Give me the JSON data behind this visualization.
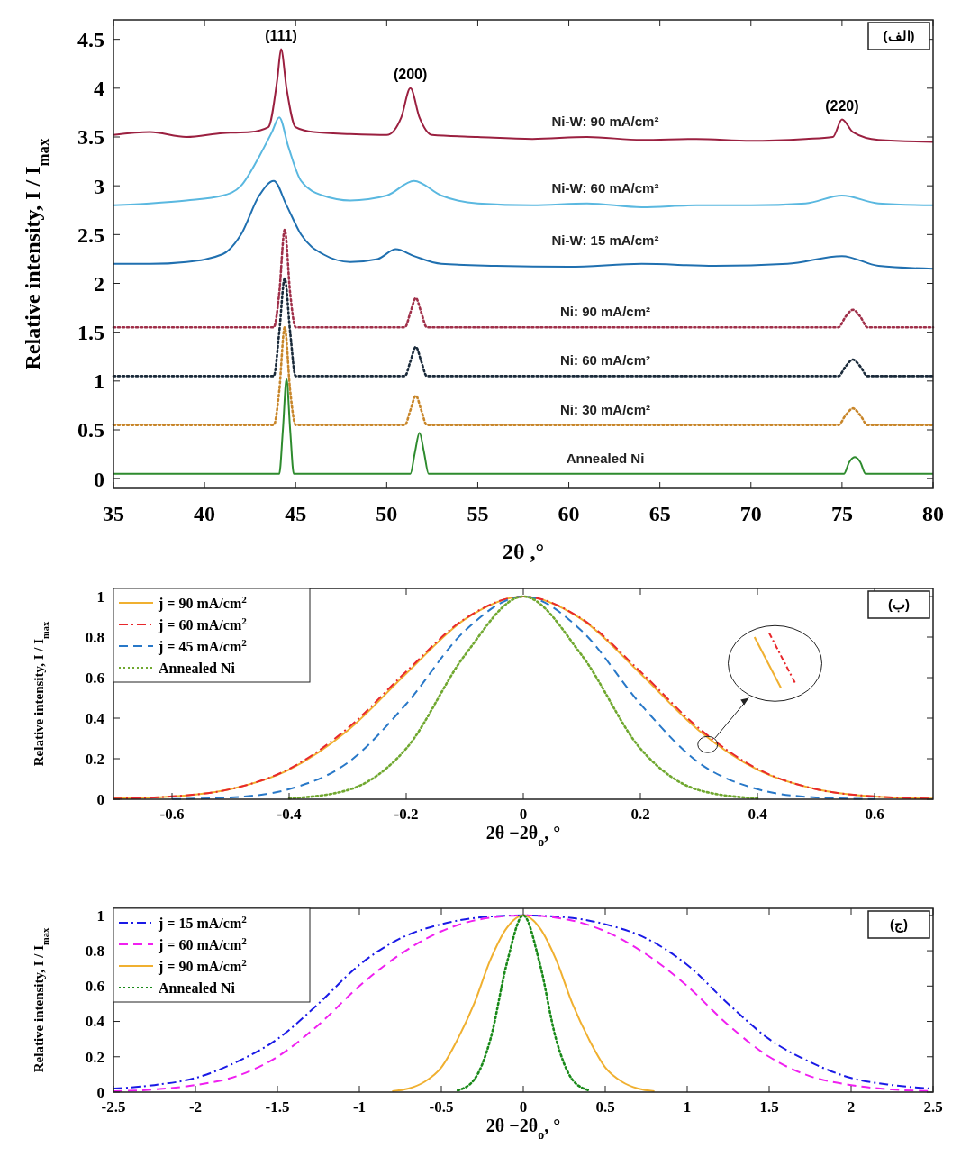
{
  "chart_data": [
    {
      "type": "line",
      "xlabel": "2θ ,°",
      "ylabel": "Relative intensity, I / I$_{max}$",
      "xlim": [
        35,
        80
      ],
      "ylim": [
        -0.1,
        4.7
      ],
      "xticks": [
        35,
        40,
        45,
        50,
        55,
        60,
        65,
        70,
        75,
        80
      ],
      "yticks": [
        0,
        0.5,
        1,
        1.5,
        2,
        2.5,
        3,
        3.5,
        4,
        4.5
      ],
      "grid": false,
      "legend": false,
      "marker": "none",
      "annotations": [
        "(الف)",
        {
          "text": "(111)",
          "x": 44.2,
          "y": 4.4
        },
        {
          "text": "(200)",
          "x": 51.3,
          "y": 4.0
        },
        {
          "text": "(220)",
          "x": 75,
          "y": 3.68
        }
      ],
      "series": [
        {
          "name": "Ni-W: 90  mA/cm²",
          "color": "#9b2040",
          "line_style": "solid",
          "x": [
            35,
            37,
            39,
            41,
            42.5,
            43.5,
            44,
            44.2,
            44.5,
            45,
            46,
            48,
            50,
            50.8,
            51.3,
            51.8,
            52.5,
            55,
            58,
            61,
            64,
            67,
            70,
            73,
            74.5,
            75,
            75.6,
            77,
            80
          ],
          "values": [
            3.52,
            3.55,
            3.5,
            3.54,
            3.55,
            3.6,
            4.1,
            4.4,
            4.0,
            3.6,
            3.55,
            3.53,
            3.52,
            3.7,
            4.0,
            3.7,
            3.52,
            3.5,
            3.48,
            3.5,
            3.47,
            3.48,
            3.46,
            3.48,
            3.5,
            3.68,
            3.55,
            3.47,
            3.45
          ]
        },
        {
          "name": "Ni-W: 60  mA/cm²",
          "color": "#5ab8e0",
          "line_style": "solid",
          "x": [
            35,
            37,
            39,
            41,
            42,
            43,
            43.7,
            44.1,
            44.6,
            45.3,
            46.5,
            48,
            50,
            51.5,
            53,
            55,
            58,
            61,
            64,
            67,
            70,
            73,
            75,
            77,
            80
          ],
          "values": [
            2.8,
            2.82,
            2.85,
            2.9,
            3.0,
            3.3,
            3.55,
            3.7,
            3.4,
            3.05,
            2.9,
            2.85,
            2.9,
            3.05,
            2.9,
            2.82,
            2.8,
            2.82,
            2.78,
            2.8,
            2.8,
            2.82,
            2.9,
            2.82,
            2.8
          ]
        },
        {
          "name": "Ni-W: 15  mA/cm²",
          "color": "#2070b0",
          "line_style": "solid",
          "x": [
            35,
            37,
            39,
            41,
            42,
            43,
            43.8,
            44.5,
            45.3,
            46.5,
            48,
            49.5,
            50.5,
            51.5,
            53,
            56,
            60,
            64,
            68,
            72,
            75,
            77,
            80
          ],
          "values": [
            2.2,
            2.2,
            2.22,
            2.3,
            2.5,
            2.9,
            3.05,
            2.8,
            2.5,
            2.3,
            2.22,
            2.25,
            2.35,
            2.28,
            2.2,
            2.18,
            2.17,
            2.2,
            2.18,
            2.2,
            2.28,
            2.18,
            2.15
          ]
        },
        {
          "name": "Ni: 90  mA/cm²",
          "color": "#a0304a",
          "line_style": "dotted",
          "x": [
            35,
            43.8,
            44.1,
            44.4,
            44.7,
            45,
            51,
            51.3,
            51.6,
            51.9,
            52.2,
            74.8,
            75.2,
            75.6,
            76,
            76.4,
            80
          ],
          "values": [
            1.55,
            1.55,
            1.9,
            2.55,
            1.9,
            1.55,
            1.55,
            1.7,
            1.85,
            1.7,
            1.55,
            1.55,
            1.66,
            1.73,
            1.66,
            1.55,
            1.55
          ]
        },
        {
          "name": "Ni: 60  mA/cm²",
          "color": "#1a2a3a",
          "line_style": "dotted",
          "x": [
            35,
            43.8,
            44.1,
            44.4,
            44.7,
            45,
            51,
            51.3,
            51.6,
            51.9,
            52.2,
            74.8,
            75.2,
            75.6,
            76,
            76.4,
            80
          ],
          "values": [
            1.05,
            1.05,
            1.5,
            2.05,
            1.5,
            1.05,
            1.05,
            1.2,
            1.35,
            1.2,
            1.05,
            1.05,
            1.15,
            1.22,
            1.15,
            1.05,
            1.05
          ]
        },
        {
          "name": "Ni: 30  mA/cm²",
          "color": "#c8862a",
          "line_style": "dotted",
          "x": [
            35,
            43.8,
            44.1,
            44.4,
            44.7,
            45,
            51,
            51.3,
            51.6,
            51.9,
            52.2,
            74.8,
            75.2,
            75.6,
            76,
            76.4,
            80
          ],
          "values": [
            0.55,
            0.55,
            0.9,
            1.55,
            0.9,
            0.55,
            0.55,
            0.7,
            0.85,
            0.7,
            0.55,
            0.55,
            0.65,
            0.72,
            0.65,
            0.55,
            0.55
          ]
        },
        {
          "name": "Annealed Ni",
          "color": "#2e8b2e",
          "line_style": "solid",
          "x": [
            35,
            44.1,
            44.3,
            44.5,
            44.7,
            44.9,
            51.3,
            51.55,
            51.8,
            52.05,
            52.3,
            75.1,
            75.4,
            75.7,
            76,
            76.3,
            80
          ],
          "values": [
            0.05,
            0.05,
            0.5,
            1.02,
            0.5,
            0.05,
            0.05,
            0.27,
            0.47,
            0.27,
            0.05,
            0.05,
            0.17,
            0.22,
            0.17,
            0.05,
            0.05
          ]
        }
      ]
    },
    {
      "type": "line",
      "xlabel": "2θ −2θ$_{o}$, °",
      "ylabel": "Relative intensity, I / I$_{max}$",
      "xlim": [
        -0.7,
        0.7
      ],
      "ylim": [
        0,
        1.04
      ],
      "xticks": [
        -0.6,
        -0.4,
        -0.2,
        0,
        0.2,
        0.4,
        0.6
      ],
      "yticks": [
        0,
        0.2,
        0.4,
        0.6,
        0.8,
        1
      ],
      "grid": false,
      "legend": "top left",
      "marker": "none",
      "annotations": [
        "(ب)"
      ],
      "x": [
        -0.7,
        -0.6,
        -0.5,
        -0.4,
        -0.3,
        -0.2,
        -0.1,
        0,
        0.1,
        0.2,
        0.3,
        0.4,
        0.5,
        0.6,
        0.7
      ],
      "series": [
        {
          "name": "j = 90 mA/cm$^{2}$",
          "color": "#f0b030",
          "line_style": "solid",
          "values": [
            0.003,
            0.013,
            0.05,
            0.146,
            0.339,
            0.62,
            0.887,
            1,
            0.887,
            0.62,
            0.339,
            0.146,
            0.05,
            0.013,
            0.003
          ]
        },
        {
          "name": "j = 60 mA/cm$^{2}$",
          "color": "#e8282c",
          "line_style": "dashdot",
          "values": [
            0.003,
            0.014,
            0.05,
            0.15,
            0.35,
            0.63,
            0.89,
            1,
            0.89,
            0.63,
            0.35,
            0.15,
            0.05,
            0.014,
            0.003
          ]
        },
        {
          "name": "j = 45 mA/cm$^{2}$",
          "color": "#2878c8",
          "line_style": "dashed",
          "x": [
            -0.6,
            -0.5,
            -0.4,
            -0.3,
            -0.2,
            -0.1,
            0,
            0.1,
            0.2,
            0.3,
            0.4,
            0.5,
            0.6
          ],
          "values": [
            0.001,
            0.009,
            0.05,
            0.18,
            0.47,
            0.83,
            1,
            0.83,
            0.47,
            0.18,
            0.05,
            0.009,
            0.001
          ]
        },
        {
          "name": "Annealed Ni",
          "color": "#70a830",
          "line_style": "dotted",
          "x": [
            -0.4,
            -0.3,
            -0.2,
            -0.1,
            0,
            0.1,
            0.2,
            0.3,
            0.4
          ],
          "values": [
            0.004,
            0.045,
            0.25,
            0.71,
            1,
            0.71,
            0.25,
            0.045,
            0.004
          ]
        }
      ]
    },
    {
      "type": "line",
      "xlabel": "2θ −2θ$_{o}$, °",
      "ylabel": "Relative intensity, I / I$_{max}$",
      "xlim": [
        -2.5,
        2.5
      ],
      "ylim": [
        0,
        1.04
      ],
      "xticks": [
        -2.5,
        -2,
        -1.5,
        -1,
        -0.5,
        0,
        0.5,
        1,
        1.5,
        2,
        2.5
      ],
      "yticks": [
        0,
        0.2,
        0.4,
        0.6,
        0.8,
        1
      ],
      "grid": false,
      "legend": "top left",
      "marker": "none",
      "annotations": [
        "(ج)"
      ],
      "series": [
        {
          "name": "j = 15 mA/cm$^{2}$",
          "color": "#1a1ae6",
          "line_style": "dashdot",
          "x": [
            -2.5,
            -2.25,
            -2,
            -1.75,
            -1.5,
            -1.25,
            -1,
            -0.75,
            -0.5,
            -0.25,
            0,
            0.25,
            0.5,
            0.75,
            1,
            1.25,
            1.5,
            1.75,
            2,
            2.25,
            2.5
          ],
          "values": [
            0.02,
            0.04,
            0.08,
            0.17,
            0.3,
            0.5,
            0.72,
            0.87,
            0.95,
            0.99,
            1,
            0.99,
            0.95,
            0.87,
            0.72,
            0.5,
            0.3,
            0.17,
            0.08,
            0.04,
            0.02
          ]
        },
        {
          "name": "j = 60 mA/cm$^{2}$",
          "color": "#f020f0",
          "line_style": "dashed",
          "x": [
            -2.5,
            -2.25,
            -2,
            -1.75,
            -1.5,
            -1.25,
            -1,
            -0.75,
            -0.5,
            -0.25,
            0,
            0.25,
            0.5,
            0.75,
            1,
            1.25,
            1.5,
            1.75,
            2,
            2.25,
            2.5
          ],
          "values": [
            0.005,
            0.015,
            0.04,
            0.09,
            0.2,
            0.38,
            0.6,
            0.78,
            0.91,
            0.98,
            1,
            0.98,
            0.91,
            0.78,
            0.6,
            0.38,
            0.2,
            0.09,
            0.04,
            0.015,
            0.005
          ]
        },
        {
          "name": "j = 90 mA/cm$^{2}$",
          "color": "#f0b030",
          "line_style": "solid",
          "x": [
            -0.8,
            -0.7,
            -0.6,
            -0.5,
            -0.4,
            -0.3,
            -0.2,
            -0.1,
            0,
            0.1,
            0.2,
            0.3,
            0.4,
            0.5,
            0.6,
            0.7,
            0.8
          ],
          "values": [
            0.005,
            0.02,
            0.06,
            0.14,
            0.3,
            0.5,
            0.75,
            0.93,
            1,
            0.93,
            0.75,
            0.5,
            0.3,
            0.14,
            0.06,
            0.02,
            0.005
          ]
        },
        {
          "name": "Annealed Ni",
          "color": "#1a8a1a",
          "line_style": "dotted",
          "x": [
            -0.4,
            -0.3,
            -0.2,
            -0.1,
            0,
            0.1,
            0.2,
            0.3,
            0.4
          ],
          "values": [
            0.01,
            0.07,
            0.3,
            0.73,
            1,
            0.73,
            0.3,
            0.07,
            0.01
          ]
        }
      ]
    }
  ]
}
